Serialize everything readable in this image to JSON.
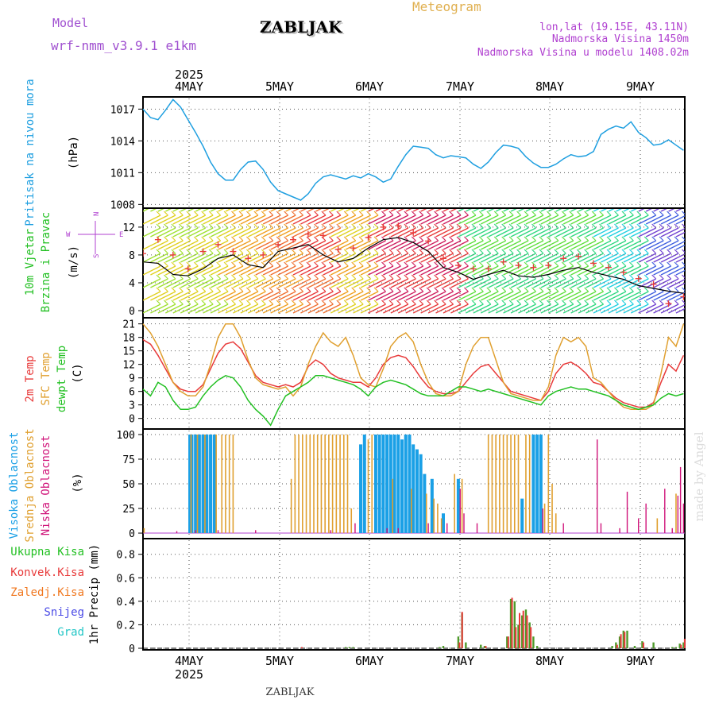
{
  "header": {
    "model_label": "Model",
    "model_name": "wrf-nmm_v3.9.1 e1km",
    "station": "ZABLJAK",
    "product": "Meteogram",
    "lonlat": "lon,lat (19.15E, 43.11N)",
    "elevation": "Nadmorska Visina 1450m",
    "model_elevation": "Nadmorska Visina u modelu 1408.02m",
    "footer_station": "ZABLJAK",
    "watermark": "made by Angel",
    "year_top": "2025",
    "year_bottom": "2025"
  },
  "colors": {
    "pressure": "#1f9fe0",
    "temp2m": "#e83a3a",
    "sfc": "#e0a030",
    "dew": "#22c022",
    "high_cloud": "#1aa0e6",
    "mid_cloud": "#e0a030",
    "low_cloud": "#d0147a",
    "total_precip": "#4e9a2a",
    "conv_precip": "#e83a3a",
    "frozen": "#f07820",
    "snow": "#4a4ae6",
    "graupel": "#22c6c6",
    "wind_dir": "#b040d0"
  },
  "chart_data": [
    {
      "id": "pressure",
      "type": "line",
      "ylabel": "Pritisak na nivou mora",
      "unit": "(hPa)",
      "x_ticks": [
        "4MAY",
        "5MAY",
        "6MAY",
        "7MAY",
        "8MAY",
        "9MAY"
      ],
      "ylim": [
        1007.8,
        1018.0
      ],
      "y_ticks": [
        1008,
        1011,
        1014,
        1017
      ],
      "grid": true,
      "x_hours": [
        0,
        2,
        4,
        6,
        8,
        10,
        12,
        14,
        16,
        18,
        20,
        22,
        24,
        26,
        28,
        30,
        32,
        34,
        36,
        38,
        40,
        42,
        44,
        46,
        48,
        50,
        52,
        54,
        56,
        58,
        60,
        62,
        64,
        66,
        68,
        70,
        72,
        74,
        76,
        78,
        80,
        82,
        84,
        86,
        88,
        90,
        92,
        94,
        96,
        98,
        100,
        102,
        104,
        106,
        108,
        110,
        112,
        114,
        116,
        118,
        120,
        122,
        124,
        126,
        128,
        130,
        132,
        134,
        136,
        138,
        140,
        142,
        144
      ],
      "values": [
        1017.0,
        1016.2,
        1016.0,
        1016.9,
        1017.9,
        1017.2,
        1016.0,
        1014.8,
        1013.5,
        1012.0,
        1010.9,
        1010.3,
        1010.3,
        1011.3,
        1012.0,
        1012.1,
        1011.3,
        1010.1,
        1009.3,
        1009.0,
        1008.7,
        1008.4,
        1009.0,
        1010.0,
        1010.6,
        1010.8,
        1010.6,
        1010.4,
        1010.7,
        1010.5,
        1010.9,
        1010.6,
        1010.1,
        1010.4,
        1011.6,
        1012.7,
        1013.5,
        1013.4,
        1013.3,
        1012.7,
        1012.4,
        1012.6,
        1012.5,
        1012.4,
        1011.8,
        1011.4,
        1012.0,
        1012.9,
        1013.6,
        1013.5,
        1013.3,
        1012.5,
        1011.9,
        1011.5,
        1011.5,
        1011.8,
        1012.3,
        1012.7,
        1012.5,
        1012.6,
        1013.0,
        1014.6,
        1015.1,
        1015.4,
        1015.2,
        1015.8,
        1014.8,
        1014.3,
        1013.6,
        1013.7,
        1014.1,
        1013.6,
        1013.1
      ]
    },
    {
      "id": "wind",
      "type": "line",
      "ylabel": [
        "10m Vjetar",
        "Brzina i Pravac"
      ],
      "unit": "(m/s)",
      "ylim": [
        -0.8,
        14.5
      ],
      "y_ticks": [
        0,
        4,
        8,
        12
      ],
      "grid": true,
      "direction_legend": [
        "N",
        "W",
        "E",
        "S"
      ],
      "x_hours": [
        0,
        4,
        8,
        12,
        16,
        20,
        24,
        28,
        32,
        36,
        40,
        44,
        48,
        52,
        56,
        60,
        64,
        68,
        72,
        76,
        80,
        84,
        88,
        92,
        96,
        100,
        104,
        108,
        112,
        116,
        120,
        124,
        128,
        132,
        136,
        140,
        144
      ],
      "speed": [
        7.0,
        6.8,
        5.2,
        5.0,
        6.0,
        7.5,
        8.0,
        6.6,
        6.2,
        8.5,
        9.0,
        9.5,
        8.0,
        7.0,
        7.5,
        9.0,
        10.2,
        10.5,
        9.8,
        8.5,
        6.2,
        5.5,
        4.5,
        5.2,
        5.8,
        5.0,
        4.8,
        5.2,
        5.8,
        6.2,
        5.5,
        5.0,
        4.5,
        3.6,
        3.2,
        2.8,
        2.5
      ],
      "gust": [
        8.2,
        10.2,
        8.0,
        6.0,
        8.5,
        9.5,
        8.5,
        7.5,
        8.0,
        9.5,
        10.2,
        11.0,
        10.8,
        8.8,
        9.0,
        10.5,
        12.0,
        12.2,
        11.2,
        10.0,
        7.5,
        6.5,
        6.0,
        6.0,
        7.0,
        6.5,
        6.2,
        6.5,
        7.5,
        7.8,
        6.8,
        6.2,
        5.5,
        4.6,
        3.8,
        1.0,
        2.0
      ]
    },
    {
      "id": "temperature",
      "type": "line",
      "ylabel": [
        "2m Temp",
        "SFC Temp",
        "dewpt Temp"
      ],
      "unit": "(C)",
      "ylim": [
        -2,
        22
      ],
      "y_ticks": [
        0,
        3,
        6,
        9,
        12,
        15,
        18,
        21
      ],
      "grid": true,
      "x_hours": [
        0,
        2,
        4,
        6,
        8,
        10,
        12,
        14,
        16,
        18,
        20,
        22,
        24,
        26,
        28,
        30,
        32,
        34,
        36,
        38,
        40,
        42,
        44,
        46,
        48,
        50,
        52,
        54,
        56,
        58,
        60,
        62,
        64,
        66,
        68,
        70,
        72,
        74,
        76,
        78,
        80,
        82,
        84,
        86,
        88,
        90,
        92,
        94,
        96,
        98,
        100,
        102,
        104,
        106,
        108,
        110,
        112,
        114,
        116,
        118,
        120,
        122,
        124,
        126,
        128,
        130,
        132,
        134,
        136,
        138,
        140,
        142,
        144
      ],
      "series": [
        {
          "name": "2m Temp",
          "values": [
            17.5,
            16.5,
            14,
            11,
            8,
            6.5,
            6,
            6,
            7.5,
            11,
            14.5,
            16.5,
            17,
            15.5,
            12.5,
            9.5,
            8,
            7.5,
            7,
            7.5,
            7,
            8,
            11.5,
            13,
            12,
            10,
            9,
            8.5,
            8,
            8,
            7,
            9,
            12,
            13.5,
            14,
            13.5,
            11.5,
            9,
            7,
            6,
            5.5,
            5.5,
            6,
            8,
            10,
            11.5,
            12,
            10,
            8,
            6,
            5.5,
            5,
            4.5,
            4,
            6,
            10,
            12,
            12.5,
            11.5,
            10,
            8,
            7.5,
            6,
            4.5,
            3.5,
            3,
            2.5,
            2.5,
            3.5,
            8,
            12,
            10.5,
            14
          ]
        },
        {
          "name": "SFC Temp",
          "values": [
            21,
            19,
            16,
            12,
            8,
            6,
            5,
            5,
            7,
            12,
            18,
            21,
            21,
            18,
            13,
            9,
            7.5,
            7,
            6.5,
            7,
            5,
            7,
            12,
            16,
            19,
            17,
            16,
            18,
            14,
            9,
            7.5,
            7,
            11,
            16,
            18,
            19,
            17,
            12,
            8,
            5.5,
            5,
            5,
            6,
            12,
            16,
            18,
            18,
            13,
            8,
            5.5,
            5,
            4.5,
            4,
            4,
            7,
            14,
            18,
            17,
            18,
            16,
            9,
            8,
            6,
            4,
            2.5,
            2,
            2,
            2,
            3,
            10,
            18,
            16,
            21
          ]
        },
        {
          "name": "dewpt Temp",
          "values": [
            6.5,
            5,
            8,
            7,
            4,
            2,
            2,
            2.5,
            5,
            7,
            8.5,
            9.5,
            9,
            7,
            4,
            2,
            0.5,
            -1.5,
            2,
            5,
            6,
            7,
            8,
            9.5,
            9.5,
            9,
            8.5,
            8,
            7.5,
            6.5,
            5,
            7,
            8,
            8.5,
            8,
            7.5,
            6.5,
            5.5,
            5,
            5,
            5,
            6,
            7,
            7,
            6.5,
            6,
            6.5,
            6,
            5.5,
            5,
            4.5,
            4,
            3.5,
            3,
            5,
            6,
            6.5,
            7,
            6.5,
            6.5,
            6,
            5.5,
            5,
            4,
            3,
            2.5,
            2,
            2.5,
            3,
            4.5,
            5.5,
            5,
            5.5
          ]
        }
      ]
    },
    {
      "id": "clouds",
      "type": "bar",
      "ylabel": [
        "Visoka Oblacnost",
        "Srednja Oblacnost",
        "Niska Oblacnost"
      ],
      "unit": "(%)",
      "ylim": [
        -4,
        104
      ],
      "y_ticks": [
        0,
        25,
        50,
        75,
        100
      ],
      "grid": true,
      "high": [
        [
          12.5,
          100
        ],
        [
          13,
          100
        ],
        [
          14,
          100
        ],
        [
          15,
          100
        ],
        [
          16,
          100
        ],
        [
          17,
          100
        ],
        [
          18,
          100
        ],
        [
          19,
          100
        ],
        [
          58,
          90
        ],
        [
          59,
          100
        ],
        [
          62,
          100
        ],
        [
          63,
          100
        ],
        [
          64,
          100
        ],
        [
          65,
          100
        ],
        [
          66,
          100
        ],
        [
          67,
          100
        ],
        [
          68,
          100
        ],
        [
          69,
          95
        ],
        [
          70,
          100
        ],
        [
          71,
          100
        ],
        [
          72,
          90
        ],
        [
          73,
          85
        ],
        [
          74,
          80
        ],
        [
          75,
          60
        ],
        [
          77,
          55
        ],
        [
          80,
          20
        ],
        [
          84,
          55
        ],
        [
          101,
          35
        ],
        [
          104,
          100
        ],
        [
          105,
          100
        ],
        [
          106,
          100
        ]
      ],
      "mid": [
        [
          0.3,
          5
        ],
        [
          12.8,
          100
        ],
        [
          14.5,
          100
        ],
        [
          16.5,
          100
        ],
        [
          19.5,
          100
        ],
        [
          21,
          100
        ],
        [
          22,
          100
        ],
        [
          23,
          100
        ],
        [
          24,
          100
        ],
        [
          39.5,
          55
        ],
        [
          40.5,
          100
        ],
        [
          41.5,
          100
        ],
        [
          42.5,
          100
        ],
        [
          43.5,
          100
        ],
        [
          44.5,
          100
        ],
        [
          45.5,
          100
        ],
        [
          46.5,
          100
        ],
        [
          47.5,
          100
        ],
        [
          48.5,
          100
        ],
        [
          49.5,
          100
        ],
        [
          50.5,
          100
        ],
        [
          51.5,
          100
        ],
        [
          52.5,
          100
        ],
        [
          53.5,
          100
        ],
        [
          54.5,
          100
        ],
        [
          55.5,
          25
        ],
        [
          60,
          95
        ],
        [
          61,
          100
        ],
        [
          66.5,
          55
        ],
        [
          71.5,
          45
        ],
        [
          75.5,
          40
        ],
        [
          77.5,
          35
        ],
        [
          78.5,
          30
        ],
        [
          79.5,
          15
        ],
        [
          83,
          60
        ],
        [
          85,
          55
        ],
        [
          92,
          100
        ],
        [
          93,
          100
        ],
        [
          94,
          100
        ],
        [
          95,
          100
        ],
        [
          96,
          100
        ],
        [
          97,
          100
        ],
        [
          98,
          100
        ],
        [
          99,
          100
        ],
        [
          100,
          100
        ],
        [
          102,
          100
        ],
        [
          103,
          100
        ],
        [
          107,
          30
        ],
        [
          108,
          100
        ],
        [
          109,
          50
        ],
        [
          110,
          20
        ],
        [
          137,
          15
        ],
        [
          142,
          40
        ]
      ],
      "low": [
        [
          9,
          2
        ],
        [
          14,
          3
        ],
        [
          20,
          3
        ],
        [
          30,
          3
        ],
        [
          50,
          3
        ],
        [
          56.5,
          10
        ],
        [
          65,
          5
        ],
        [
          68,
          5
        ],
        [
          76,
          10
        ],
        [
          81,
          10
        ],
        [
          84.5,
          45
        ],
        [
          85.5,
          20
        ],
        [
          89,
          10
        ],
        [
          106.5,
          25
        ],
        [
          112,
          10
        ],
        [
          121,
          95
        ],
        [
          122,
          10
        ],
        [
          127,
          5
        ],
        [
          129,
          42
        ],
        [
          132,
          15
        ],
        [
          134,
          30
        ],
        [
          139,
          45
        ],
        [
          141,
          5
        ],
        [
          142.5,
          38
        ],
        [
          143.2,
          67
        ],
        [
          144,
          30
        ]
      ]
    },
    {
      "id": "precip",
      "type": "bar",
      "ylabel": "1hr Precip",
      "unit": "(mm)",
      "ylim": [
        0,
        0.92
      ],
      "y_ticks": [
        0,
        0.2,
        0.4,
        0.6,
        0.8
      ],
      "grid": true,
      "legend": [
        "Ukupna Kisa",
        "Konvek.Kisa",
        "Zaledj.Kisa",
        "Snijeg",
        "Grad"
      ],
      "total": [
        [
          54,
          0.01
        ],
        [
          55,
          0.01
        ],
        [
          56,
          0.01
        ],
        [
          79,
          0.01
        ],
        [
          80,
          0.02
        ],
        [
          84,
          0.1
        ],
        [
          85,
          0.3
        ],
        [
          86,
          0.05
        ],
        [
          90,
          0.03
        ],
        [
          91,
          0.02
        ],
        [
          97,
          0.1
        ],
        [
          98,
          0.42
        ],
        [
          99,
          0.4
        ],
        [
          100,
          0.2
        ],
        [
          101,
          0.28
        ],
        [
          102,
          0.33
        ],
        [
          103,
          0.22
        ],
        [
          104,
          0.1
        ],
        [
          105,
          0.02
        ],
        [
          125,
          0.02
        ],
        [
          126,
          0.05
        ],
        [
          127,
          0.1
        ],
        [
          128,
          0.15
        ],
        [
          129,
          0.15
        ],
        [
          131,
          0.02
        ],
        [
          133,
          0.06
        ],
        [
          136,
          0.05
        ],
        [
          141,
          0.01
        ],
        [
          142,
          0.01
        ],
        [
          143,
          0.04
        ],
        [
          144,
          0.05
        ]
      ],
      "conv": [
        [
          42,
          0.01
        ],
        [
          84,
          0.05
        ],
        [
          84.7,
          0.31
        ],
        [
          91,
          0.02
        ],
        [
          97,
          0.1
        ],
        [
          98,
          0.43
        ],
        [
          99,
          0.18
        ],
        [
          100,
          0.3
        ],
        [
          101,
          0.32
        ],
        [
          102,
          0.28
        ],
        [
          103,
          0.18
        ],
        [
          126,
          0.03
        ],
        [
          127,
          0.12
        ],
        [
          128,
          0.14
        ],
        [
          133,
          0.05
        ],
        [
          143,
          0.03
        ],
        [
          144,
          0.08
        ]
      ]
    }
  ]
}
